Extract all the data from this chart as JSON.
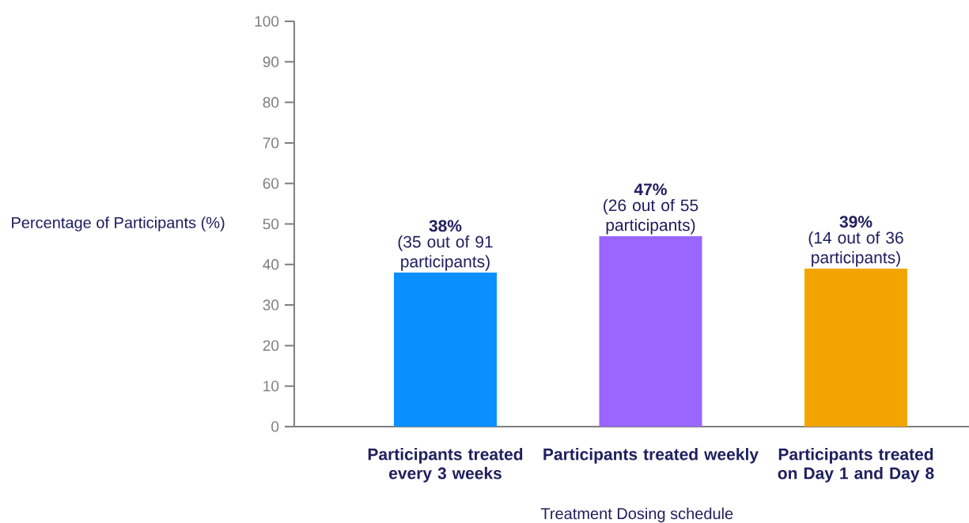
{
  "chart_data": {
    "type": "bar",
    "xlabel": "Treatment Dosing schedule",
    "ylabel": "Percentage of Participants (%)",
    "categories": [
      "Participants treated every 3 weeks",
      "Participants treated weekly",
      "Participants treated on Day 1 and Day 8"
    ],
    "values": [
      38,
      47,
      39
    ],
    "colors": [
      "#0a8fff",
      "#9966ff",
      "#f2a500"
    ],
    "value_labels": [
      "38%",
      "47%",
      "39%"
    ],
    "annotations": [
      {
        "text": "(35 out of 91 participants)",
        "x": "Participants treated every 3 weeks",
        "y": 38
      },
      {
        "text": "(26 out of 55 participants)",
        "x": "Participants treated weekly",
        "y": 47
      },
      {
        "text": "(14 out of 36 participants)",
        "x": "Participants treated on Day 1 and Day 8",
        "y": 39
      }
    ],
    "ylim": [
      0,
      100
    ],
    "yticks": [
      0,
      10,
      20,
      30,
      40,
      50,
      60,
      70,
      80,
      90,
      100
    ],
    "grid": false
  }
}
